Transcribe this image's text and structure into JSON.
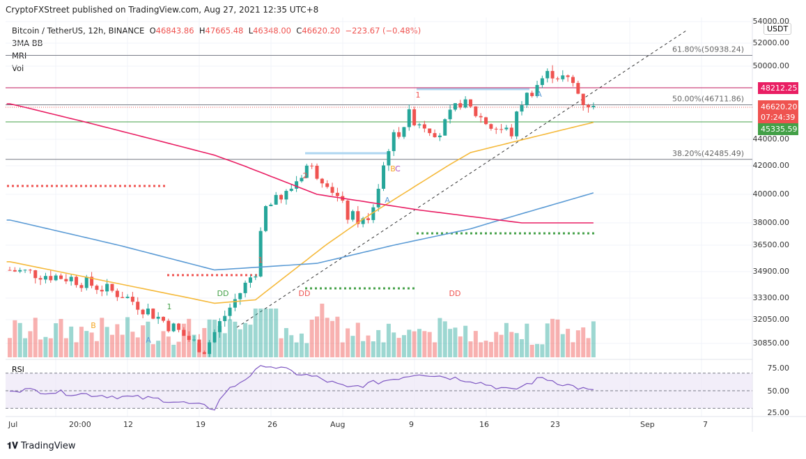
{
  "header": {
    "published": "CryptoFXStreet published on TradingView.com, Aug 27, 2021 12:35 UTC+8",
    "symbol": "Bitcoin / TetherUS, 12h, BINANCE",
    "o_label": "O",
    "o": "46843.86",
    "h_label": "H",
    "h": "47665.48",
    "l_label": "L",
    "l": "46348.00",
    "c_label": "C",
    "c": "46620.20",
    "change": "−223.67 (−0.48%)",
    "indicators": [
      "3MA BB",
      "MRI",
      "Vol"
    ]
  },
  "currency": "USDT",
  "price_axis": [
    "54000.00",
    "52000.00",
    "50000.00",
    "44000.00",
    "42000.00",
    "40000.00",
    "38000.00",
    "36500.00",
    "34900.00",
    "33300.00",
    "32050.00",
    "30850.00"
  ],
  "tags": {
    "resistance": "48212.25",
    "last": "46620.20",
    "countdown": "07:24:39",
    "support": "45335.59"
  },
  "fib": [
    {
      "label": "61.80%(50938.24)",
      "price": 50938.24
    },
    {
      "label": "50.00%(46711.86)",
      "price": 46711.86
    },
    {
      "label": "38.20%(42485.49)",
      "price": 42485.49
    }
  ],
  "rsi": {
    "label": "RSI",
    "axis": [
      "75.00",
      "50.00",
      "25.00"
    ]
  },
  "time_axis": [
    "Jul",
    "20:00",
    "12",
    "19",
    "26",
    "Aug",
    "9",
    "16",
    "23",
    "Sep",
    "7"
  ],
  "markers": [
    "1",
    "1",
    "2",
    "1",
    "B",
    "A",
    "A",
    "B",
    "C",
    "A",
    "DD",
    "DD",
    "DD"
  ],
  "brand": "TradingView",
  "colors": {
    "up": "#26a69a",
    "down": "#ef5350",
    "ma50": "#f5b93a",
    "ma100": "#5b9bd5",
    "ma200": "#e91e63",
    "rsi": "#7e57c2"
  },
  "chart_data": {
    "type": "candlestick",
    "interval": "12h",
    "symbol": "BTCUSDT",
    "key_closes": [
      [
        0,
        35000
      ],
      [
        12,
        34500
      ],
      [
        22,
        33500
      ],
      [
        30,
        32000
      ],
      [
        38,
        30500
      ],
      [
        42,
        32300
      ],
      [
        48,
        35000
      ],
      [
        50,
        39000
      ],
      [
        54,
        40000
      ],
      [
        58,
        42000
      ],
      [
        62,
        41000
      ],
      [
        66,
        38500
      ],
      [
        70,
        38000
      ],
      [
        72,
        40500
      ],
      [
        74,
        43500
      ],
      [
        78,
        45800
      ],
      [
        84,
        44500
      ],
      [
        88,
        47000
      ],
      [
        94,
        45000
      ],
      [
        98,
        44500
      ],
      [
        100,
        47000
      ],
      [
        104,
        49000
      ],
      [
        106,
        49500
      ],
      [
        110,
        48500
      ],
      [
        112,
        47000
      ],
      [
        114,
        46620
      ]
    ],
    "ma50": [
      [
        0,
        35500
      ],
      [
        40,
        33000
      ],
      [
        48,
        33200
      ],
      [
        70,
        38500
      ],
      [
        90,
        43000
      ],
      [
        114,
        45300
      ]
    ],
    "ma100": [
      [
        0,
        38200
      ],
      [
        40,
        35000
      ],
      [
        60,
        35400
      ],
      [
        90,
        37600
      ],
      [
        114,
        40100
      ]
    ],
    "ma200": [
      [
        0,
        46800
      ],
      [
        40,
        42800
      ],
      [
        60,
        40000
      ],
      [
        80,
        38900
      ],
      [
        100,
        38000
      ],
      [
        114,
        38000
      ]
    ],
    "rsi_keys": [
      [
        0,
        52
      ],
      [
        10,
        48
      ],
      [
        30,
        40
      ],
      [
        40,
        30
      ],
      [
        42,
        48
      ],
      [
        50,
        80
      ],
      [
        56,
        70
      ],
      [
        60,
        65
      ],
      [
        66,
        53
      ],
      [
        72,
        60
      ],
      [
        80,
        70
      ],
      [
        90,
        62
      ],
      [
        98,
        50
      ],
      [
        104,
        65
      ],
      [
        108,
        58
      ],
      [
        114,
        49
      ]
    ],
    "ylim": [
      30000,
      54500
    ]
  }
}
